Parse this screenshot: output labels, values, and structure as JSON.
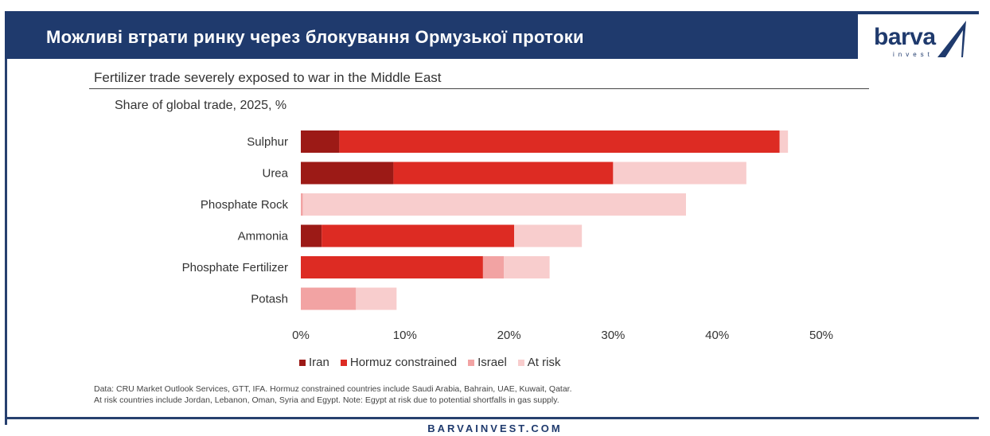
{
  "header": {
    "title": "Можливі втрати ринку через блокування Ормузької протоки",
    "logo_text": "barva",
    "logo_sub": "invest"
  },
  "footer": {
    "site": "BARVAINVEST.COM"
  },
  "source_note": [
    "Data: CRU Market Outlook Services, GTT, IFA. Hormuz constrained countries include Saudi Arabia, Bahrain, UAE, Kuwait, Qatar.",
    "At risk countries include Jordan, Lebanon, Oman, Syria and Egypt. Note: Egypt at risk due to potential shortfalls in gas supply."
  ],
  "colors": {
    "iran": "#9c1a16",
    "hormuz": "#dd2b23",
    "israel": "#f2a3a3",
    "at_risk": "#f8cdcd",
    "header": "#1f3a6d"
  },
  "chart_data": {
    "type": "bar",
    "orientation": "horizontal",
    "stacked": true,
    "title": "Fertilizer trade severely exposed to war in the Middle East",
    "subtitle": "Share of global trade, 2025, %",
    "categories": [
      "Sulphur",
      "Urea",
      "Phosphate Rock",
      "Ammonia",
      "Phosphate Fertilizer",
      "Potash"
    ],
    "series": [
      {
        "name": "Iran",
        "values": [
          3.7,
          8.9,
          0,
          2.0,
          0,
          0
        ]
      },
      {
        "name": "Hormuz constrained",
        "values": [
          42.3,
          21.1,
          0,
          18.5,
          17.5,
          0
        ]
      },
      {
        "name": "Israel",
        "values": [
          0,
          0,
          0.2,
          0,
          2.0,
          5.3
        ]
      },
      {
        "name": "At risk",
        "values": [
          0.8,
          12.8,
          36.8,
          6.5,
          4.4,
          3.9
        ]
      }
    ],
    "xlim": [
      0,
      50
    ],
    "xticks": [
      "0%",
      "10%",
      "20%",
      "30%",
      "40%",
      "50%"
    ],
    "legend_position": "bottom",
    "grid": false
  }
}
